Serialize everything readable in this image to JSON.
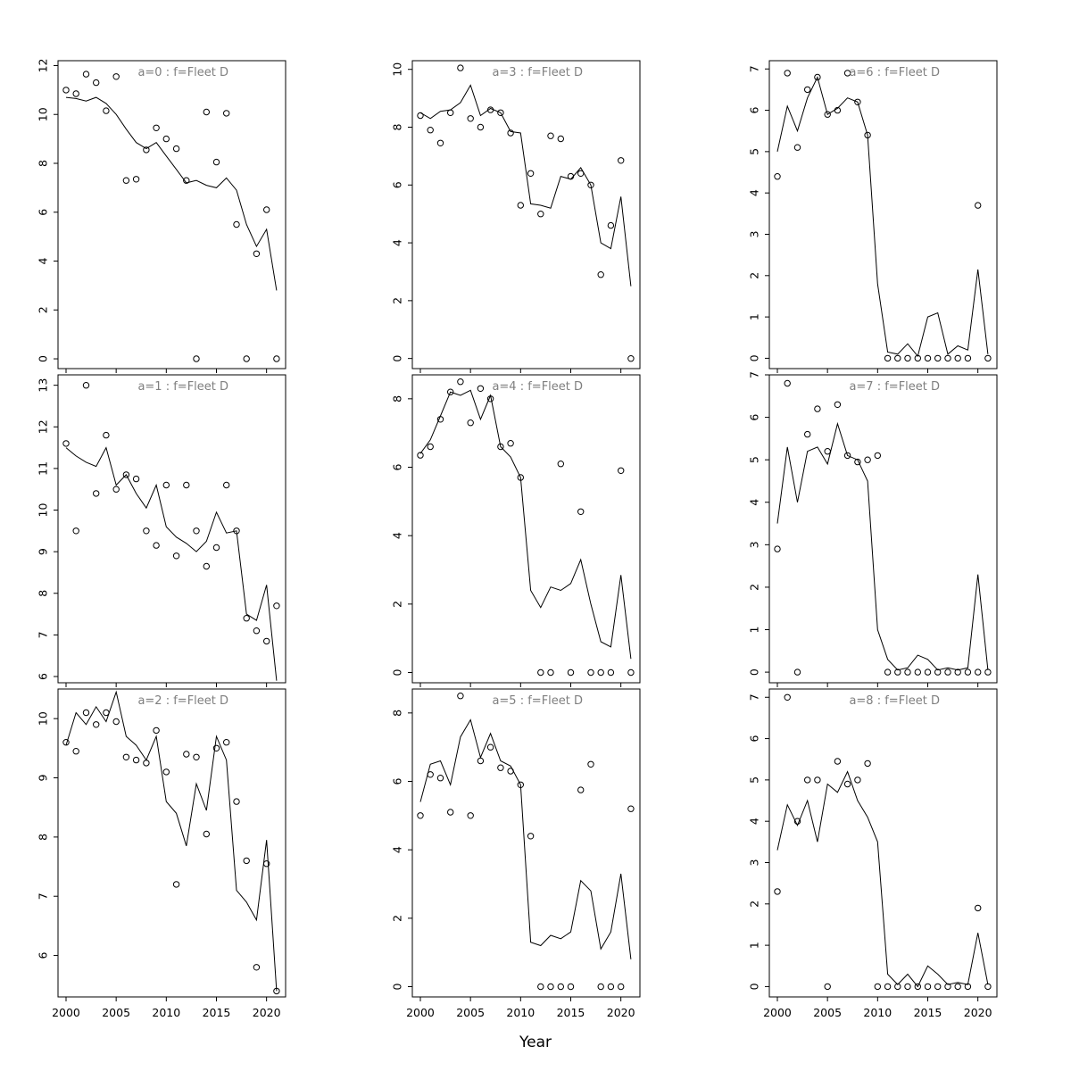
{
  "figure": {
    "xlabel": "Year"
  },
  "colors": {
    "line": "#000000",
    "point": "#000000",
    "axis": "#000000",
    "tick_label": "#000000",
    "panel_title": "#7f7f7f",
    "background": "#ffffff"
  },
  "chart_data": {
    "type": "scatter",
    "description": "3x3 grid of observed (circles) vs fitted (line) values by age class for Fleet D",
    "xlabel": "Year",
    "grid": false,
    "legend": "none",
    "xlim": [
      1999.2,
      2021.9
    ],
    "xticks": [
      2000,
      2005,
      2010,
      2015,
      2020
    ],
    "years": [
      2000,
      2001,
      2002,
      2003,
      2004,
      2005,
      2006,
      2007,
      2008,
      2009,
      2010,
      2011,
      2012,
      2013,
      2014,
      2015,
      2016,
      2017,
      2018,
      2019,
      2020,
      2021
    ],
    "panels": [
      {
        "title": "a=0  :  f=Fleet D",
        "ylim": [
          -0.4,
          12.2
        ],
        "yticks": [
          0,
          2,
          4,
          6,
          8,
          10,
          12
        ],
        "points": [
          11.0,
          10.85,
          11.65,
          11.3,
          10.15,
          11.55,
          7.3,
          7.35,
          8.55,
          9.45,
          9.0,
          8.6,
          7.3,
          0,
          10.1,
          8.05,
          10.05,
          5.5,
          0,
          4.3,
          6.1,
          0
        ],
        "line": [
          10.7,
          10.65,
          10.55,
          10.7,
          10.45,
          10.0,
          9.4,
          8.85,
          8.6,
          8.85,
          8.3,
          7.75,
          7.2,
          7.3,
          7.1,
          7.0,
          7.4,
          6.9,
          5.5,
          4.6,
          5.3,
          2.8
        ]
      },
      {
        "title": "a=1  :  f=Fleet D",
        "ylim": [
          5.85,
          13.25
        ],
        "yticks": [
          6,
          7,
          8,
          9,
          10,
          11,
          12,
          13
        ],
        "points": [
          11.6,
          9.5,
          13.0,
          10.4,
          11.8,
          10.5,
          10.85,
          10.75,
          9.5,
          9.15,
          10.6,
          8.9,
          10.6,
          9.5,
          8.65,
          9.1,
          10.6,
          9.5,
          7.4,
          7.1,
          6.85,
          7.7
        ],
        "line": [
          11.5,
          11.3,
          11.15,
          11.05,
          11.5,
          10.6,
          10.85,
          10.4,
          10.05,
          10.6,
          9.6,
          9.35,
          9.2,
          9.0,
          9.25,
          9.95,
          9.45,
          9.5,
          7.5,
          7.35,
          8.2,
          5.9
        ]
      },
      {
        "title": "a=2  :  f=Fleet D",
        "ylim": [
          5.3,
          10.5
        ],
        "yticks": [
          6,
          7,
          8,
          9,
          10
        ],
        "points": [
          9.6,
          9.45,
          10.1,
          9.9,
          10.1,
          9.95,
          9.35,
          9.3,
          9.25,
          9.8,
          9.1,
          7.2,
          9.4,
          9.35,
          8.05,
          9.5,
          9.6,
          8.6,
          7.6,
          5.8,
          7.55,
          5.4
        ],
        "line": [
          9.55,
          10.1,
          9.9,
          10.2,
          9.95,
          10.45,
          9.7,
          9.55,
          9.3,
          9.7,
          8.6,
          8.4,
          7.85,
          8.9,
          8.45,
          9.7,
          9.3,
          7.1,
          6.9,
          6.6,
          7.95,
          5.4
        ]
      },
      {
        "title": "a=3  :  f=Fleet D",
        "ylim": [
          -0.35,
          10.3
        ],
        "yticks": [
          0,
          2,
          4,
          6,
          8,
          10
        ],
        "points": [
          8.4,
          7.9,
          7.45,
          8.5,
          10.05,
          8.3,
          8.0,
          8.6,
          8.5,
          7.8,
          5.3,
          6.4,
          5.0,
          7.7,
          7.6,
          6.3,
          6.4,
          6.0,
          2.9,
          4.6,
          6.85,
          0
        ],
        "line": [
          8.5,
          8.3,
          8.55,
          8.6,
          8.85,
          9.45,
          8.4,
          8.65,
          8.5,
          7.85,
          7.8,
          5.35,
          5.3,
          5.2,
          6.3,
          6.2,
          6.6,
          6.0,
          4.0,
          3.8,
          5.6,
          2.5
        ]
      },
      {
        "title": "a=4  :  f=Fleet D",
        "ylim": [
          -0.3,
          8.7
        ],
        "yticks": [
          0,
          2,
          4,
          6,
          8
        ],
        "points": [
          6.35,
          6.6,
          7.4,
          8.2,
          8.5,
          7.3,
          8.3,
          8.0,
          6.6,
          6.7,
          5.7,
          null,
          0,
          0,
          6.1,
          0,
          4.7,
          0,
          0,
          0,
          5.9,
          0
        ],
        "line": [
          6.4,
          6.8,
          7.5,
          8.2,
          8.1,
          8.25,
          7.4,
          8.1,
          6.6,
          6.3,
          5.7,
          2.4,
          1.9,
          2.5,
          2.4,
          2.6,
          3.3,
          2.0,
          0.9,
          0.75,
          2.85,
          0.4
        ]
      },
      {
        "title": "a=5  :  f=Fleet D",
        "ylim": [
          -0.3,
          8.7
        ],
        "yticks": [
          0,
          2,
          4,
          6,
          8
        ],
        "points": [
          5.0,
          6.2,
          6.1,
          5.1,
          8.5,
          5.0,
          6.6,
          7.0,
          6.4,
          6.3,
          5.9,
          4.4,
          0,
          0,
          0,
          0,
          5.75,
          6.5,
          0,
          0,
          0,
          5.2
        ],
        "line": [
          5.4,
          6.5,
          6.6,
          5.9,
          7.3,
          7.8,
          6.7,
          7.4,
          6.6,
          6.45,
          5.9,
          1.3,
          1.2,
          1.5,
          1.4,
          1.6,
          3.1,
          2.8,
          1.1,
          1.6,
          3.3,
          0.8
        ]
      },
      {
        "title": "a=6  :  f=Fleet D",
        "ylim": [
          -0.25,
          7.2
        ],
        "yticks": [
          0,
          1,
          2,
          3,
          4,
          5,
          6,
          7
        ],
        "points": [
          4.4,
          6.9,
          5.1,
          6.5,
          6.8,
          5.9,
          6.0,
          6.9,
          6.2,
          5.4,
          null,
          0,
          0,
          0,
          0,
          0,
          0,
          0,
          0,
          0,
          3.7,
          0
        ],
        "line": [
          5.0,
          6.1,
          5.5,
          6.3,
          6.8,
          5.9,
          6.05,
          6.3,
          6.2,
          5.4,
          1.8,
          0.15,
          0.1,
          0.35,
          0.05,
          1.0,
          1.1,
          0.1,
          0.3,
          0.2,
          2.15,
          0.1
        ]
      },
      {
        "title": "a=7  :  f=Fleet D",
        "ylim": [
          -0.25,
          7.0
        ],
        "yticks": [
          0,
          1,
          2,
          3,
          4,
          5,
          6,
          7
        ],
        "points": [
          2.9,
          6.8,
          0,
          5.6,
          6.2,
          5.2,
          6.3,
          5.1,
          4.95,
          5.0,
          5.1,
          0,
          0,
          0,
          0,
          0,
          0,
          0,
          0,
          0,
          0,
          0
        ],
        "line": [
          3.5,
          5.3,
          4.0,
          5.2,
          5.3,
          4.9,
          5.85,
          5.1,
          5.0,
          4.5,
          1.0,
          0.3,
          0.05,
          0.1,
          0.4,
          0.3,
          0.05,
          0.1,
          0.05,
          0.1,
          2.3,
          0.05
        ]
      },
      {
        "title": "a=8  :  f=Fleet D",
        "ylim": [
          -0.25,
          7.2
        ],
        "yticks": [
          0,
          1,
          2,
          3,
          4,
          5,
          6,
          7
        ],
        "points": [
          2.3,
          7.0,
          4.0,
          5.0,
          5.0,
          0,
          5.45,
          4.9,
          5.0,
          5.4,
          0,
          0,
          0,
          0,
          0,
          0,
          0,
          0,
          0,
          0,
          1.9,
          0
        ],
        "line": [
          3.3,
          4.4,
          3.9,
          4.5,
          3.5,
          4.9,
          4.7,
          5.2,
          4.5,
          4.1,
          3.5,
          0.3,
          0.05,
          0.3,
          0.0,
          0.5,
          0.3,
          0.05,
          0.1,
          0.05,
          1.3,
          0.05
        ]
      }
    ]
  }
}
